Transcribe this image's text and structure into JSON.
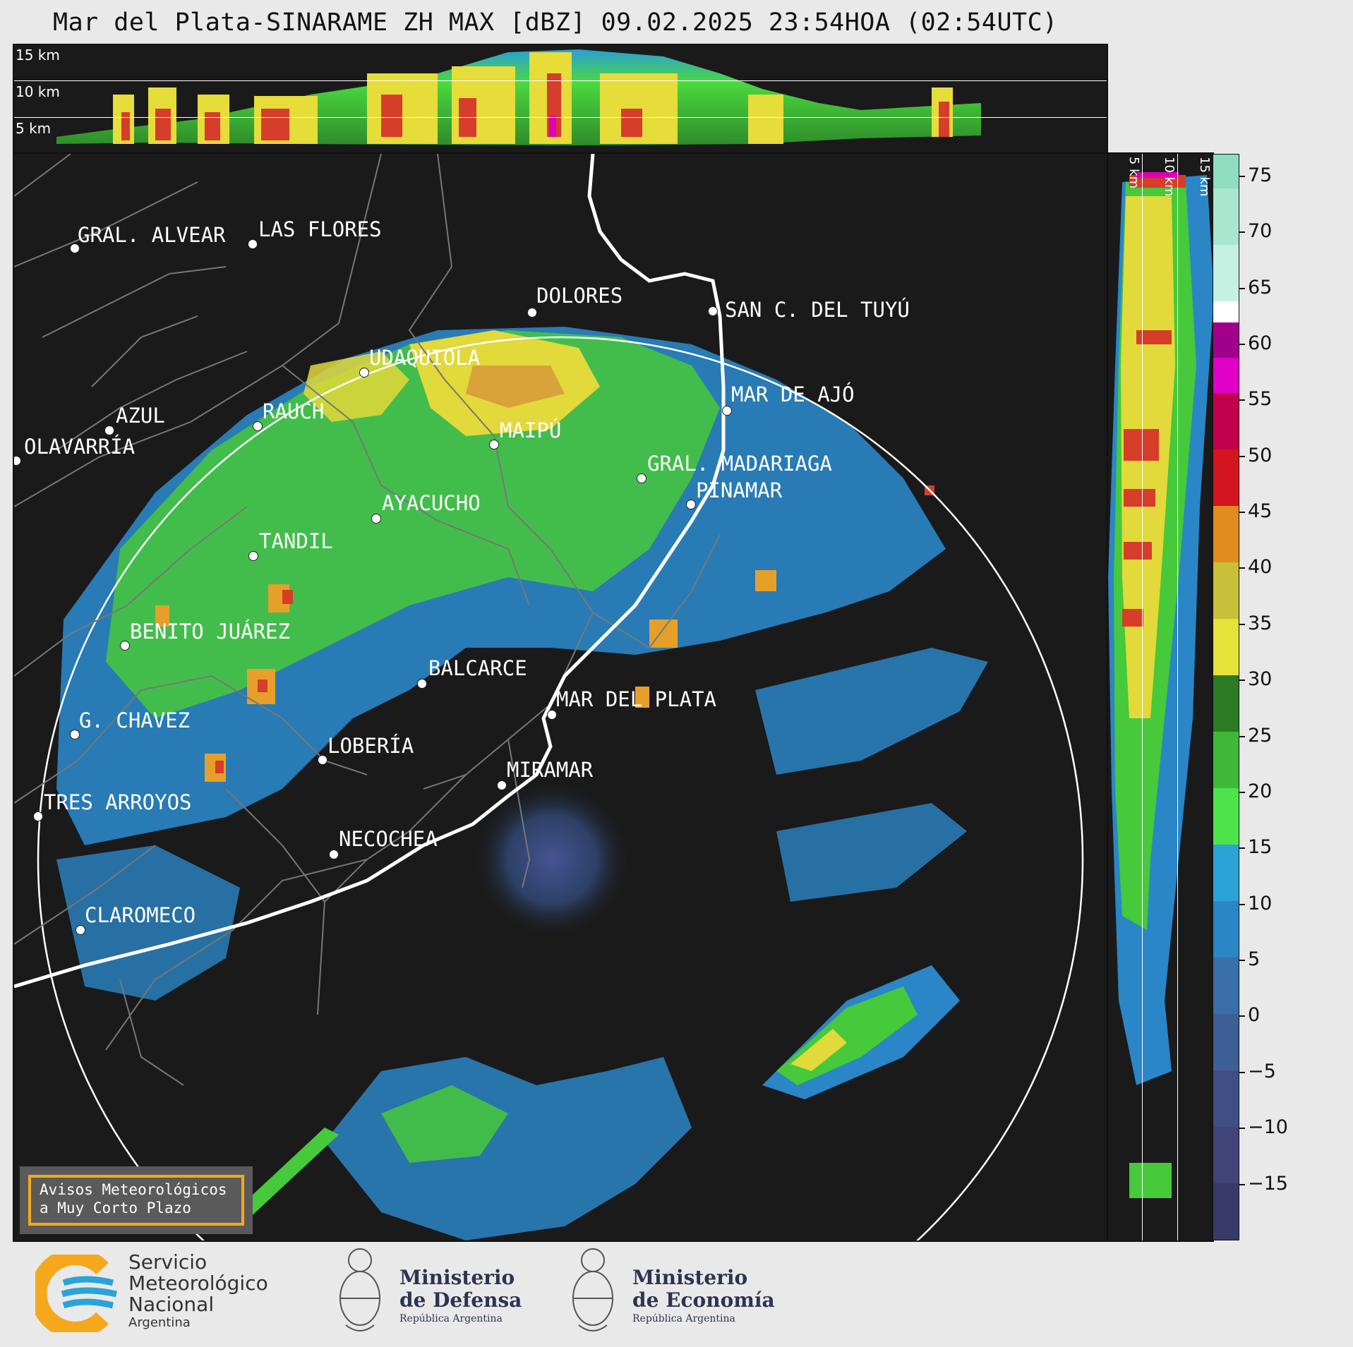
{
  "title": "Mar del Plata-SINARAME ZH MAX [dBZ] 09.02.2025 23:54HOA (02:54UTC)",
  "height_labels": [
    "15 km",
    "10 km",
    "5 km"
  ],
  "cities": [
    {
      "name": "GRAL. ALVEAR"
    },
    {
      "name": "LAS FLORES"
    },
    {
      "name": "DOLORES"
    },
    {
      "name": "SAN C. DEL TUYÚ"
    },
    {
      "name": "UDAQUIOLA"
    },
    {
      "name": "MAR DE AJÓ"
    },
    {
      "name": "AZUL"
    },
    {
      "name": "RAUCH"
    },
    {
      "name": "OLAVARRÍA"
    },
    {
      "name": "MAIPÚ"
    },
    {
      "name": "GRAL. MADARIAGA"
    },
    {
      "name": "PINAMAR"
    },
    {
      "name": "AYACUCHO"
    },
    {
      "name": "TANDIL"
    },
    {
      "name": "BENITO JUÁREZ"
    },
    {
      "name": "BALCARCE"
    },
    {
      "name": "MAR DEL PLATA"
    },
    {
      "name": "G. CHAVEZ"
    },
    {
      "name": "LOBERÍA"
    },
    {
      "name": "MIRAMAR"
    },
    {
      "name": "TRES ARROYOS"
    },
    {
      "name": "NECOCHEA"
    },
    {
      "name": "CLAROMECO"
    }
  ],
  "colorbar": {
    "ticks": [
      "75",
      "70",
      "65",
      "60",
      "55",
      "50",
      "45",
      "40",
      "35",
      "30",
      "25",
      "20",
      "15",
      "10",
      "5",
      "0",
      "−5",
      "−10",
      "−15"
    ],
    "range": [
      -20,
      77
    ]
  },
  "warning": {
    "line1": "Avisos Meteorológicos",
    "line2": "a Muy Corto Plazo"
  },
  "logos": {
    "smn_line1": "Servicio",
    "smn_line2": "Meteorológico",
    "smn_line3": "Nacional",
    "smn_line4": "Argentina",
    "defensa_line1": "Ministerio",
    "defensa_line2": "de Defensa",
    "defensa_line3": "República Argentina",
    "economia_line1": "Ministerio",
    "economia_line2": "de Economía",
    "economia_line3": "República Argentina"
  },
  "colors": {
    "accent": "#f5a81c",
    "background": "#1a1a1a",
    "coast": "#ffffff",
    "borders": "#777777"
  }
}
